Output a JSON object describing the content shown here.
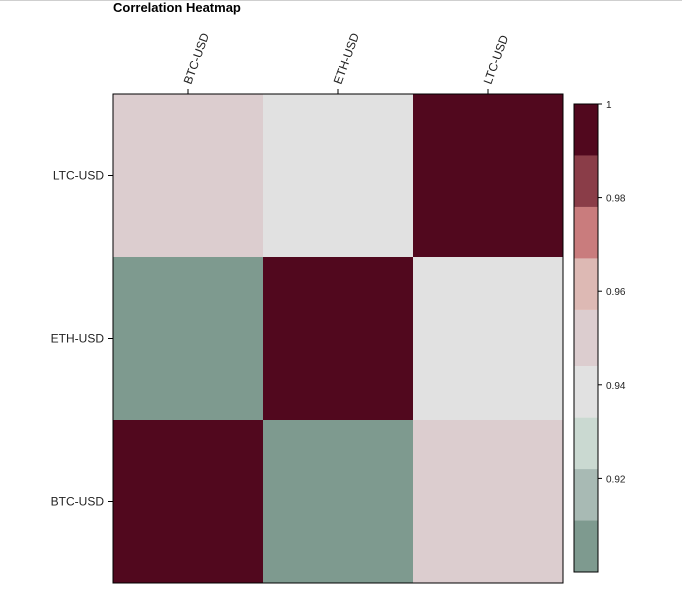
{
  "chart_data": {
    "type": "heatmap",
    "title": "Correlation Heatmap",
    "x_categories": [
      "BTC-USD",
      "ETH-USD",
      "LTC-USD"
    ],
    "y_categories": [
      "LTC-USD",
      "ETH-USD",
      "BTC-USD"
    ],
    "values": [
      [
        0.951,
        0.944,
        1.0
      ],
      [
        0.902,
        1.0,
        0.944
      ],
      [
        1.0,
        0.902,
        0.951
      ]
    ],
    "colorbar": {
      "min": 0.9,
      "max": 1.0,
      "ticks": [
        0.92,
        0.94,
        0.96,
        0.98,
        1
      ],
      "tick_labels": [
        "0.92",
        "0.94",
        "0.96",
        "0.98",
        "1"
      ],
      "bins": [
        {
          "from": 0.9,
          "to": 0.911,
          "color": "#7e9a8f"
        },
        {
          "from": 0.911,
          "to": 0.922,
          "color": "#a8bab4"
        },
        {
          "from": 0.922,
          "to": 0.933,
          "color": "#cad9d1"
        },
        {
          "from": 0.933,
          "to": 0.944,
          "color": "#e1e1e1"
        },
        {
          "from": 0.944,
          "to": 0.956,
          "color": "#dccdcf"
        },
        {
          "from": 0.956,
          "to": 0.967,
          "color": "#ddb9b4"
        },
        {
          "from": 0.967,
          "to": 0.978,
          "color": "#c97c7d"
        },
        {
          "from": 0.978,
          "to": 0.989,
          "color": "#8a3d48"
        },
        {
          "from": 0.989,
          "to": 1.0,
          "color": "#51081e"
        }
      ]
    }
  }
}
